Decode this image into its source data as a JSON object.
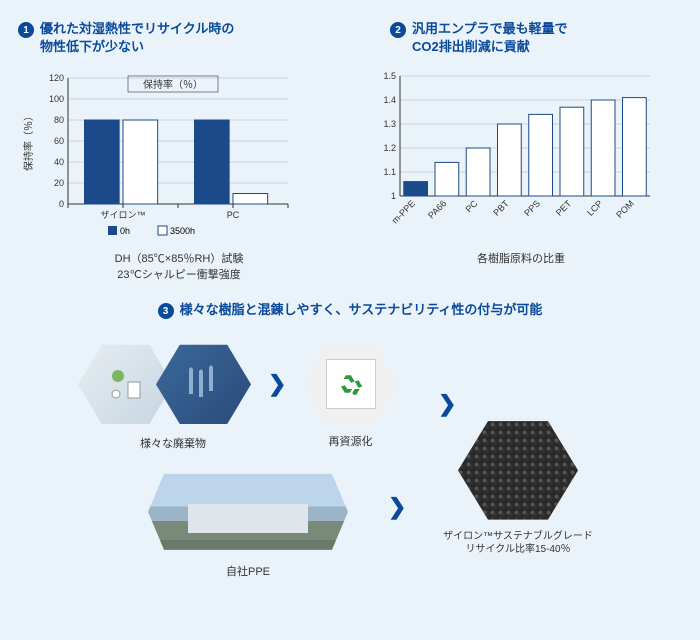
{
  "panel1": {
    "bullet": "1",
    "title_line1": "優れた対湿熱性でリサイクル時の",
    "title_line2": "物性低下が少ない",
    "chart": {
      "type": "bar",
      "title": "保持率（％）",
      "ylabel": "保持率（％）",
      "ylim": [
        0,
        120
      ],
      "ytick_step": 20,
      "groups": [
        "ザイロン™",
        "PC"
      ],
      "series": [
        {
          "name": "0h",
          "color_fill": "#1a4a8a",
          "values": [
            80,
            80
          ]
        },
        {
          "name": "3500h",
          "color_fill": "#ffffff",
          "color_stroke": "#1a4a8a",
          "values": [
            80,
            10
          ]
        }
      ],
      "axis_color": "#333333",
      "grid_color": "#b0b0b0",
      "text_color": "#333333",
      "bar_width": 0.35
    },
    "legend_0h": "0h",
    "legend_3500h": "3500h",
    "caption_line1": "DH（85℃×85％RH）試験",
    "caption_line2": "23℃シャルピー衝撃強度"
  },
  "panel2": {
    "bullet": "2",
    "title_line1": "汎用エンプラで最も軽量で",
    "title_line2": "CO2排出削減に貢献",
    "chart": {
      "type": "bar",
      "ylim": [
        1.0,
        1.5
      ],
      "ytick_step": 0.1,
      "categories": [
        "m-PPE",
        "PA66",
        "PC",
        "PBT",
        "PPS",
        "PET",
        "LCP",
        "POM"
      ],
      "values": [
        1.06,
        1.14,
        1.2,
        1.3,
        1.34,
        1.37,
        1.4,
        1.41
      ],
      "highlight_index": 0,
      "highlight_color": "#1a4a8a",
      "bar_fill": "#ffffff",
      "bar_stroke": "#1a4a8a",
      "grid_color": "#b0b0b0",
      "axis_color": "#333333"
    },
    "caption": "各樹脂原料の比重"
  },
  "panel3": {
    "bullet": "3",
    "title": "様々な樹脂と混錬しやすく、サステナビリティ性の付与が可能",
    "hex1_label": "様々な廃棄物",
    "hex2_label": "再資源化",
    "hex3_label_line1": "ザイロン™サステナブルグレード",
    "hex3_label_line2": "リサイクル比率15-40％",
    "factory_label": "自社PPE",
    "chevron": "❯",
    "colors": {
      "hex_bg": "#c5c8ca",
      "accent": "#0a4a9a"
    }
  }
}
